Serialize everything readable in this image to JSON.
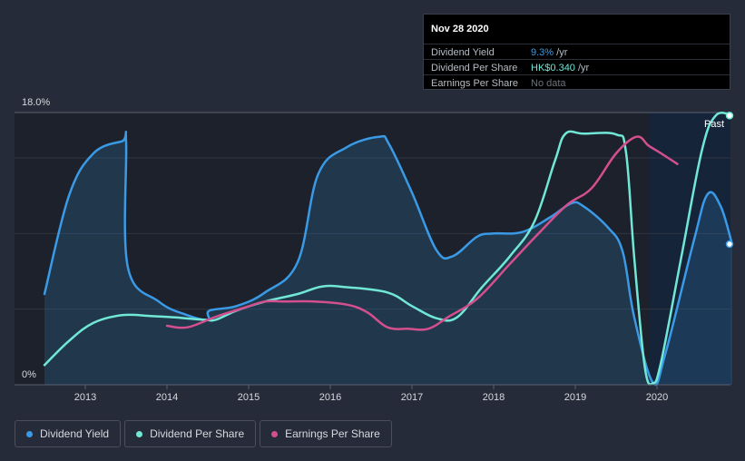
{
  "chart_data": {
    "type": "line",
    "title": "",
    "ylim": [
      0,
      18
    ],
    "y_tick_labels": [
      "18.0%",
      "0%"
    ],
    "x_tick_labels": [
      "2013",
      "2014",
      "2015",
      "2016",
      "2017",
      "2018",
      "2019",
      "2020"
    ],
    "forecast_label": "Past",
    "series": [
      {
        "name": "Dividend Yield",
        "color": "#3a9ae6",
        "points": [
          [
            2012.5,
            6.0
          ],
          [
            2012.8,
            12.5
          ],
          [
            2013.1,
            15.3
          ],
          [
            2013.45,
            16.1
          ],
          [
            2013.5,
            16.0
          ],
          [
            2013.52,
            7.8
          ],
          [
            2013.9,
            5.5
          ],
          [
            2014.25,
            4.6
          ],
          [
            2014.5,
            4.3
          ],
          [
            2014.52,
            4.9
          ],
          [
            2014.85,
            5.2
          ],
          [
            2015.2,
            6.1
          ],
          [
            2015.6,
            8.1
          ],
          [
            2015.85,
            13.9
          ],
          [
            2016.2,
            15.7
          ],
          [
            2016.6,
            16.4
          ],
          [
            2016.72,
            15.9
          ],
          [
            2017.0,
            12.7
          ],
          [
            2017.3,
            8.9
          ],
          [
            2017.5,
            8.5
          ],
          [
            2017.8,
            9.8
          ],
          [
            2018.0,
            10.0
          ],
          [
            2018.35,
            10.1
          ],
          [
            2018.7,
            11.1
          ],
          [
            2018.95,
            12.0
          ],
          [
            2019.1,
            11.8
          ],
          [
            2019.4,
            10.4
          ],
          [
            2019.58,
            8.8
          ],
          [
            2019.72,
            4.5
          ],
          [
            2019.95,
            0.15
          ],
          [
            2020.1,
            2.0
          ],
          [
            2020.45,
            9.5
          ],
          [
            2020.62,
            12.6
          ],
          [
            2020.78,
            11.8
          ],
          [
            2020.92,
            9.3
          ]
        ]
      },
      {
        "name": "Dividend Per Share",
        "color": "#71e7d6",
        "points": [
          [
            2012.5,
            1.3
          ],
          [
            2012.8,
            2.9
          ],
          [
            2013.1,
            4.1
          ],
          [
            2013.45,
            4.6
          ],
          [
            2013.8,
            4.55
          ],
          [
            2014.1,
            4.45
          ],
          [
            2014.45,
            4.3
          ],
          [
            2014.6,
            4.3
          ],
          [
            2014.85,
            4.9
          ],
          [
            2015.2,
            5.5
          ],
          [
            2015.6,
            6.0
          ],
          [
            2015.9,
            6.5
          ],
          [
            2016.2,
            6.45
          ],
          [
            2016.7,
            6.1
          ],
          [
            2017.0,
            5.2
          ],
          [
            2017.3,
            4.4
          ],
          [
            2017.55,
            4.45
          ],
          [
            2017.85,
            6.4
          ],
          [
            2018.2,
            8.5
          ],
          [
            2018.5,
            10.8
          ],
          [
            2018.75,
            14.8
          ],
          [
            2018.88,
            16.6
          ],
          [
            2019.1,
            16.6
          ],
          [
            2019.5,
            16.55
          ],
          [
            2019.62,
            15.4
          ],
          [
            2019.72,
            8.5
          ],
          [
            2019.85,
            1.2
          ],
          [
            2019.95,
            0.1
          ],
          [
            2020.05,
            1.5
          ],
          [
            2020.3,
            8.5
          ],
          [
            2020.55,
            15.5
          ],
          [
            2020.72,
            17.8
          ],
          [
            2020.92,
            17.8
          ]
        ]
      },
      {
        "name": "Earnings Per Share",
        "color": "#d44f8e",
        "points": [
          [
            2014.0,
            3.9
          ],
          [
            2014.25,
            3.8
          ],
          [
            2014.6,
            4.5
          ],
          [
            2014.95,
            5.1
          ],
          [
            2015.2,
            5.5
          ],
          [
            2015.45,
            5.5
          ],
          [
            2015.8,
            5.5
          ],
          [
            2016.2,
            5.3
          ],
          [
            2016.45,
            4.8
          ],
          [
            2016.7,
            3.8
          ],
          [
            2016.95,
            3.7
          ],
          [
            2017.2,
            3.7
          ],
          [
            2017.45,
            4.5
          ],
          [
            2017.8,
            5.7
          ],
          [
            2018.2,
            8.0
          ],
          [
            2018.55,
            10.0
          ],
          [
            2018.9,
            11.9
          ],
          [
            2019.2,
            13.0
          ],
          [
            2019.5,
            15.3
          ],
          [
            2019.75,
            16.4
          ],
          [
            2019.9,
            15.8
          ],
          [
            2020.05,
            15.3
          ],
          [
            2020.25,
            14.6
          ]
        ]
      }
    ]
  },
  "tooltip": {
    "date": "Nov 28 2020",
    "rows": [
      {
        "label": "Dividend Yield",
        "value": "9.3%",
        "unit": " /yr",
        "color": "#3a9ae6"
      },
      {
        "label": "Dividend Per Share",
        "value": "HK$0.340",
        "unit": " /yr",
        "color": "#71e7d6"
      },
      {
        "label": "Earnings Per Share",
        "value": "No data",
        "unit": "",
        "color": "#6b717c"
      }
    ]
  },
  "legend": [
    {
      "label": "Dividend Yield",
      "color": "#3a9ae6"
    },
    {
      "label": "Dividend Per Share",
      "color": "#71e7d6"
    },
    {
      "label": "Earnings Per Share",
      "color": "#d44f8e"
    }
  ]
}
